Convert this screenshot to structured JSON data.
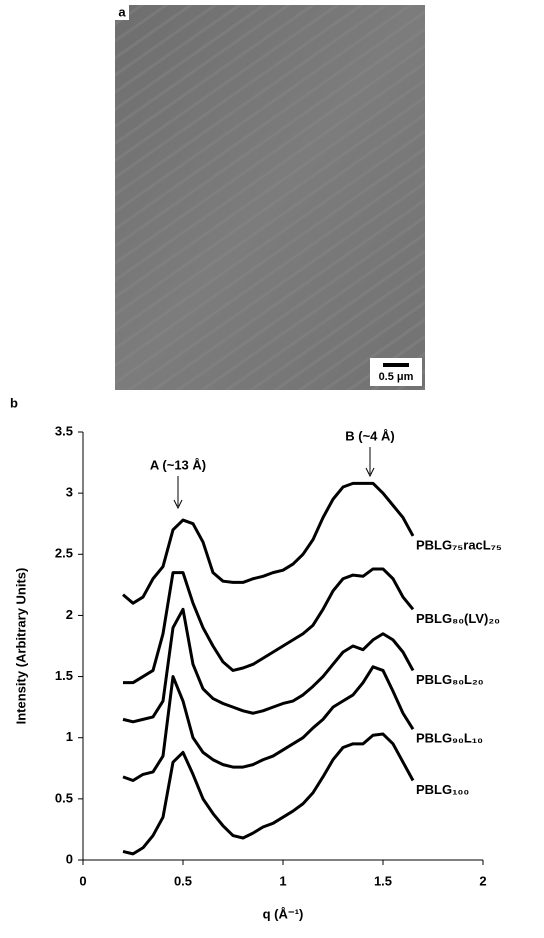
{
  "image_panel": {
    "label": "a",
    "scale_bar": "0.5 μm"
  },
  "chart_data": {
    "type": "line",
    "panel_label": "b",
    "x_label": "q (Å⁻¹)",
    "y_label": "Intensity (Arbitrary Units)",
    "annotations": [
      "A (~13 Å)",
      "B (~4 Å)"
    ],
    "x": [
      0.2,
      0.25,
      0.3,
      0.35,
      0.4,
      0.45,
      0.5,
      0.55,
      0.6,
      0.65,
      0.7,
      0.75,
      0.8,
      0.85,
      0.9,
      0.95,
      1.0,
      1.05,
      1.1,
      1.15,
      1.2,
      1.25,
      1.3,
      1.35,
      1.4,
      1.45,
      1.5,
      1.55,
      1.6,
      1.65
    ],
    "series": [
      {
        "name": "PBLG₇₅racL₇₅",
        "color": "#000000",
        "values": [
          2.17,
          2.1,
          2.15,
          2.3,
          2.4,
          2.7,
          2.78,
          2.75,
          2.6,
          2.35,
          2.28,
          2.27,
          2.27,
          2.3,
          2.32,
          2.35,
          2.37,
          2.42,
          2.5,
          2.62,
          2.8,
          2.95,
          3.05,
          3.08,
          3.08,
          3.08,
          3.0,
          2.9,
          2.8,
          2.65
        ]
      },
      {
        "name": "PBLG₈₀(LV)₂₀",
        "color": "#000000",
        "values": [
          1.45,
          1.45,
          1.5,
          1.55,
          1.85,
          2.35,
          2.35,
          2.1,
          1.9,
          1.75,
          1.62,
          1.55,
          1.57,
          1.6,
          1.65,
          1.7,
          1.75,
          1.8,
          1.85,
          1.92,
          2.05,
          2.2,
          2.3,
          2.33,
          2.32,
          2.38,
          2.38,
          2.3,
          2.15,
          2.05
        ]
      },
      {
        "name": "PBLG₈₀L₂₀",
        "color": "#000000",
        "values": [
          1.15,
          1.13,
          1.15,
          1.17,
          1.3,
          1.9,
          2.05,
          1.6,
          1.4,
          1.32,
          1.28,
          1.25,
          1.22,
          1.2,
          1.22,
          1.25,
          1.28,
          1.3,
          1.35,
          1.42,
          1.5,
          1.6,
          1.7,
          1.75,
          1.72,
          1.8,
          1.85,
          1.8,
          1.7,
          1.55
        ]
      },
      {
        "name": "PBLG₉₀L₁₀",
        "color": "#000000",
        "values": [
          0.68,
          0.65,
          0.7,
          0.72,
          0.85,
          1.5,
          1.3,
          1.0,
          0.88,
          0.82,
          0.78,
          0.76,
          0.76,
          0.78,
          0.82,
          0.85,
          0.9,
          0.95,
          1.0,
          1.08,
          1.15,
          1.25,
          1.3,
          1.35,
          1.45,
          1.58,
          1.55,
          1.38,
          1.2,
          1.07
        ]
      },
      {
        "name": "PBLG₁₀₀",
        "color": "#000000",
        "values": [
          0.07,
          0.05,
          0.1,
          0.2,
          0.35,
          0.8,
          0.88,
          0.7,
          0.5,
          0.38,
          0.28,
          0.2,
          0.18,
          0.22,
          0.27,
          0.3,
          0.35,
          0.4,
          0.46,
          0.55,
          0.68,
          0.82,
          0.92,
          0.95,
          0.95,
          1.02,
          1.03,
          0.95,
          0.8,
          0.65
        ]
      }
    ],
    "xlim": [
      0,
      2
    ],
    "ylim": [
      0,
      3.5
    ],
    "xticks": [
      0,
      0.5,
      1,
      1.5,
      2
    ],
    "yticks": [
      0,
      0.5,
      1,
      1.5,
      2,
      2.5,
      3,
      3.5
    ]
  }
}
